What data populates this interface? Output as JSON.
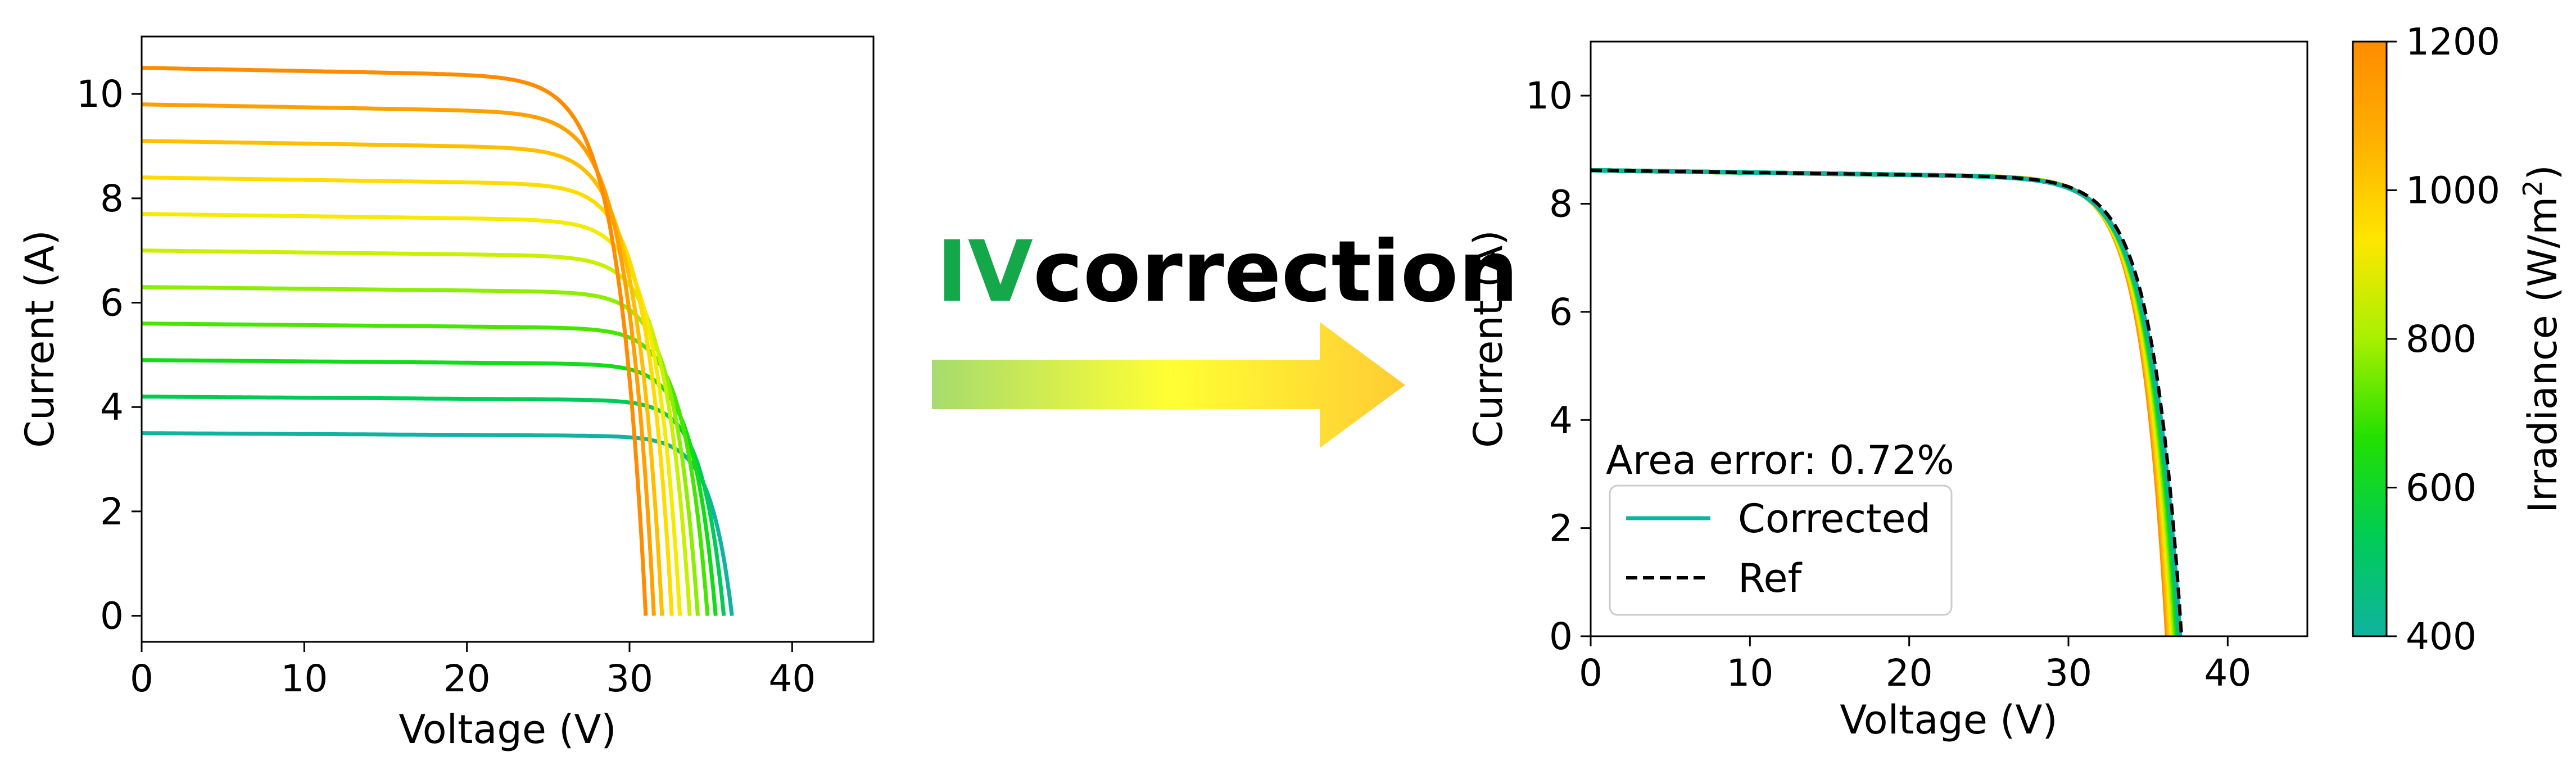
{
  "banner": {
    "prefix": "IV",
    "suffix": "correction",
    "prefix_color": "#14a84a",
    "suffix_color": "#000000",
    "arrow_gradient": [
      "#a6db6e",
      "#ffff33",
      "#ffcc33"
    ]
  },
  "chart_data": [
    {
      "type": "line",
      "xlabel": "Voltage (V)",
      "ylabel": "Current (A)",
      "xlim": [
        0,
        45
      ],
      "ylim": [
        -0.5,
        11.1
      ],
      "xticks": [
        0,
        10,
        20,
        30,
        40
      ],
      "yticks": [
        0,
        2,
        4,
        6,
        8,
        10
      ],
      "grid": false,
      "legend": "none",
      "colorscale": "irradiance",
      "series": [
        {
          "irradiance": 1200,
          "isc": 10.5,
          "voc": 31.0,
          "vmp": 25.5,
          "color": "#ff8c00"
        },
        {
          "irradiance": 1120,
          "isc": 9.8,
          "voc": 31.5,
          "vmp": 26.3,
          "color": "#ffa000"
        },
        {
          "irradiance": 1040,
          "isc": 9.1,
          "voc": 32.0,
          "vmp": 27.0,
          "color": "#ffbf00"
        },
        {
          "irradiance": 960,
          "isc": 8.4,
          "voc": 32.6,
          "vmp": 27.8,
          "color": "#ffdb00"
        },
        {
          "irradiance": 880,
          "isc": 7.7,
          "voc": 33.1,
          "vmp": 28.4,
          "color": "#f5eb00"
        },
        {
          "irradiance": 800,
          "isc": 7.0,
          "voc": 33.7,
          "vmp": 29.0,
          "color": "#c8f000"
        },
        {
          "irradiance": 720,
          "isc": 6.3,
          "voc": 34.2,
          "vmp": 29.6,
          "color": "#8cee00"
        },
        {
          "irradiance": 640,
          "isc": 5.6,
          "voc": 34.8,
          "vmp": 30.3,
          "color": "#46e600"
        },
        {
          "irradiance": 560,
          "isc": 4.9,
          "voc": 35.3,
          "vmp": 30.9,
          "color": "#12dc18"
        },
        {
          "irradiance": 480,
          "isc": 4.2,
          "voc": 35.8,
          "vmp": 31.6,
          "color": "#00cc55"
        },
        {
          "irradiance": 400,
          "isc": 3.5,
          "voc": 36.3,
          "vmp": 32.1,
          "color": "#10b3a0"
        }
      ]
    },
    {
      "type": "line",
      "xlabel": "Voltage (V)",
      "ylabel": "Current (A)",
      "xlim": [
        0,
        45
      ],
      "ylim": [
        0,
        11
      ],
      "xticks": [
        0,
        10,
        20,
        30,
        40
      ],
      "yticks": [
        0,
        2,
        4,
        6,
        8,
        10
      ],
      "grid": false,
      "legend": "lower-left",
      "annotation": "Area error: 0.72%",
      "corrected": {
        "isc": 8.62,
        "voc_min": 36.2,
        "voc_max": 37.0,
        "vmp": 31.0,
        "colors": [
          "#ff8c00",
          "#ffa500",
          "#ffbf00",
          "#ffdb00",
          "#f5eb00",
          "#c8f000",
          "#8cee00",
          "#46e600",
          "#12dc18",
          "#00cc55",
          "#10b3a0"
        ]
      },
      "reference": {
        "isc": 8.62,
        "voc": 37.1,
        "vmp": 31.2
      },
      "legend_entries": [
        {
          "label": "Corrected",
          "color": "#10b3a0",
          "style": "solid"
        },
        {
          "label": "Ref",
          "color": "#000000",
          "style": "dashed"
        }
      ]
    }
  ],
  "colorbar": {
    "label": "Irradiance (W/m",
    "label_sup": "2",
    "label_close": ")",
    "min": 400,
    "max": 1200,
    "ticks": [
      400,
      600,
      800,
      1000,
      1200
    ],
    "stops": [
      "#10b3a0",
      "#00cc55",
      "#22e000",
      "#a8f000",
      "#ffe600",
      "#ffb000",
      "#ff8c00"
    ]
  }
}
